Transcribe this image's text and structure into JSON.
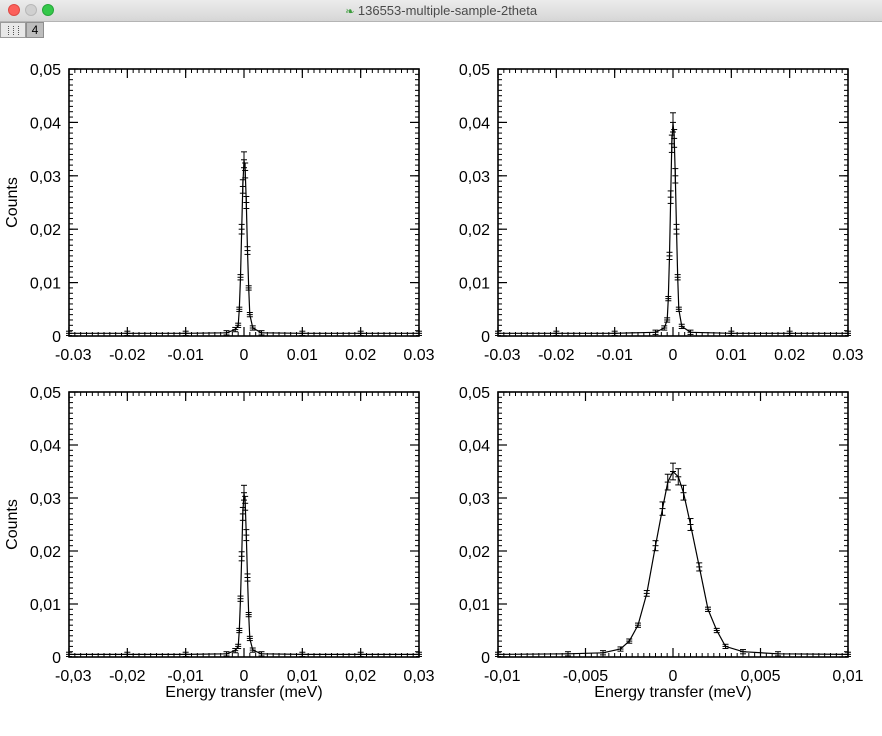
{
  "window": {
    "title": "136553-multiple-sample-2theta",
    "toolbar_number": "4"
  },
  "chart_data": [
    {
      "type": "line",
      "title": "",
      "xlabel": "",
      "ylabel": "Counts",
      "xlim": [
        -0.03,
        0.03
      ],
      "ylim": [
        0,
        0.05
      ],
      "xticks": [
        "-0.03",
        "-0.02",
        "-0.01",
        "0",
        "0.01",
        "0.02",
        "0.03"
      ],
      "xtick_values": [
        -0.03,
        -0.02,
        -0.01,
        0,
        0.01,
        0.02,
        0.03
      ],
      "yticks": [
        "0",
        "0,01",
        "0,02",
        "0,03",
        "0,04",
        "0,05"
      ],
      "ytick_values": [
        0,
        0.01,
        0.02,
        0.03,
        0.04,
        0.05
      ],
      "error_bars": true,
      "series": [
        {
          "x": [
            -0.03,
            -0.02,
            -0.01,
            -0.003,
            -0.0015,
            -0.001,
            -0.0008,
            -0.0006,
            -0.0004,
            -0.0002,
            0,
            0.0002,
            0.0004,
            0.0006,
            0.0008,
            0.001,
            0.0015,
            0.003,
            0.01,
            0.02,
            0.03
          ],
          "y": [
            0.0005,
            0.0005,
            0.0005,
            0.0006,
            0.0012,
            0.002,
            0.005,
            0.011,
            0.02,
            0.028,
            0.033,
            0.031,
            0.025,
            0.016,
            0.009,
            0.004,
            0.0015,
            0.0006,
            0.0005,
            0.0005,
            0.0005
          ]
        }
      ]
    },
    {
      "type": "line",
      "title": "",
      "xlabel": "",
      "ylabel": "",
      "xlim": [
        -0.03,
        0.03
      ],
      "ylim": [
        0,
        0.05
      ],
      "xticks": [
        "-0.03",
        "-0.02",
        "-0.01",
        "0",
        "0.01",
        "0.02",
        "0.03"
      ],
      "xtick_values": [
        -0.03,
        -0.02,
        -0.01,
        0,
        0.01,
        0.02,
        0.03
      ],
      "yticks": [
        "0",
        "0,01",
        "0,02",
        "0,03",
        "0,04",
        "0,05"
      ],
      "ytick_values": [
        0,
        0.01,
        0.02,
        0.03,
        0.04,
        0.05
      ],
      "error_bars": true,
      "series": [
        {
          "x": [
            -0.03,
            -0.02,
            -0.01,
            -0.003,
            -0.0015,
            -0.001,
            -0.0008,
            -0.0006,
            -0.0004,
            -0.0002,
            0,
            0.0002,
            0.0004,
            0.0006,
            0.0008,
            0.001,
            0.0015,
            0.003,
            0.01,
            0.02,
            0.03
          ],
          "y": [
            0.0005,
            0.0005,
            0.0005,
            0.0007,
            0.0015,
            0.003,
            0.007,
            0.015,
            0.026,
            0.036,
            0.04,
            0.037,
            0.03,
            0.02,
            0.011,
            0.005,
            0.0018,
            0.0007,
            0.0005,
            0.0005,
            0.0005
          ]
        }
      ]
    },
    {
      "type": "line",
      "title": "",
      "xlabel": "Energy transfer (meV)",
      "ylabel": "Counts",
      "xlim": [
        -0.03,
        0.03
      ],
      "ylim": [
        0,
        0.05
      ],
      "xticks": [
        "-0,03",
        "-0,02",
        "-0,01",
        "0",
        "0,01",
        "0,02",
        "0,03"
      ],
      "xtick_values": [
        -0.03,
        -0.02,
        -0.01,
        0,
        0.01,
        0.02,
        0.03
      ],
      "yticks": [
        "0",
        "0,01",
        "0,02",
        "0,03",
        "0,04",
        "0,05"
      ],
      "ytick_values": [
        0,
        0.01,
        0.02,
        0.03,
        0.04,
        0.05
      ],
      "error_bars": true,
      "series": [
        {
          "x": [
            -0.03,
            -0.02,
            -0.01,
            -0.003,
            -0.0015,
            -0.001,
            -0.0008,
            -0.0006,
            -0.0004,
            -0.0002,
            0,
            0.0002,
            0.0004,
            0.0006,
            0.0008,
            0.001,
            0.0015,
            0.003,
            0.01,
            0.02,
            0.03
          ],
          "y": [
            0.0005,
            0.0005,
            0.0005,
            0.0006,
            0.0012,
            0.002,
            0.005,
            0.011,
            0.019,
            0.027,
            0.031,
            0.029,
            0.023,
            0.015,
            0.008,
            0.0035,
            0.0013,
            0.0006,
            0.0005,
            0.0005,
            0.0005
          ]
        }
      ]
    },
    {
      "type": "line",
      "title": "",
      "xlabel": "Energy transfer (meV)",
      "ylabel": "",
      "xlim": [
        -0.01,
        0.01
      ],
      "ylim": [
        0,
        0.05
      ],
      "xticks": [
        "-0,01",
        "-0,005",
        "0",
        "0,005",
        "0,01"
      ],
      "xtick_values": [
        -0.01,
        -0.005,
        0,
        0.005,
        0.01
      ],
      "yticks": [
        "0",
        "0,01",
        "0,02",
        "0,03",
        "0,04",
        "0,05"
      ],
      "ytick_values": [
        0,
        0.01,
        0.02,
        0.03,
        0.04,
        0.05
      ],
      "error_bars": true,
      "series": [
        {
          "x": [
            -0.01,
            -0.006,
            -0.004,
            -0.003,
            -0.0025,
            -0.002,
            -0.0015,
            -0.001,
            -0.0006,
            -0.0003,
            0,
            0.0003,
            0.0006,
            0.001,
            0.0015,
            0.002,
            0.0025,
            0.003,
            0.004,
            0.006,
            0.01
          ],
          "y": [
            0.0005,
            0.0006,
            0.0008,
            0.0015,
            0.003,
            0.006,
            0.012,
            0.021,
            0.028,
            0.033,
            0.035,
            0.034,
            0.031,
            0.025,
            0.017,
            0.009,
            0.005,
            0.002,
            0.001,
            0.0006,
            0.0005
          ]
        }
      ]
    }
  ]
}
